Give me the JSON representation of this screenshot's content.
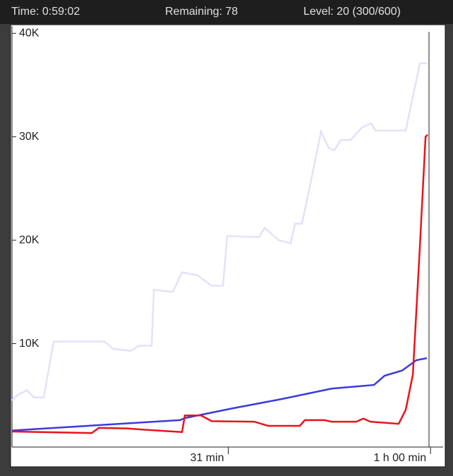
{
  "header": {
    "time": "Time: 0:59:02",
    "remaining": "Remaining: 78",
    "level": "Level: 20 (300/600)"
  },
  "chart_data": {
    "type": "line",
    "xlim": [
      0,
      61.5
    ],
    "xticks": [
      {
        "value": 31,
        "label": "31 min"
      },
      {
        "value": 60,
        "label": "1 h 00 min"
      }
    ],
    "ylim": [
      0,
      40700
    ],
    "yticks": [
      {
        "value": 10000,
        "label": "10K"
      },
      {
        "value": 20000,
        "label": "20K"
      },
      {
        "value": 30000,
        "label": "30K"
      },
      {
        "value": 40000,
        "label": "40K"
      }
    ],
    "series": [
      {
        "color": "#e2e2f8",
        "x": [
          0,
          0.71,
          2.12,
          3.14,
          4.55,
          5.97,
          13.25,
          14.47,
          16.99,
          18.21,
          20.03,
          20.33,
          23.06,
          24.38,
          26.6,
          28.63,
          30.24,
          30.85,
          35.4,
          36.21,
          38.24,
          39.96,
          40.56,
          41.57,
          42.79,
          44.3,
          45.42,
          46.23,
          47.14,
          48.55,
          50.17,
          51.49,
          52.09,
          56.44,
          58.47,
          59.48
        ],
        "values": [
          4500,
          5000,
          5500,
          4800,
          4800,
          10200,
          10200,
          9500,
          9300,
          9800,
          9800,
          15200,
          15000,
          16900,
          16600,
          15600,
          15600,
          20400,
          20300,
          21200,
          20000,
          19700,
          21600,
          21600,
          25500,
          30500,
          28900,
          28700,
          29700,
          29700,
          30900,
          31300,
          30600,
          30600,
          37100,
          37100
        ]
      },
      {
        "color": "#3b3bd8",
        "x": [
          0,
          24.07,
          24.78,
          31.66,
          38.74,
          45.82,
          51.89,
          53.41,
          55.94,
          57.97,
          59.48
        ],
        "values": [
          1600,
          2600,
          2800,
          3750,
          4650,
          5650,
          6000,
          6900,
          7400,
          8400,
          8600
        ]
      },
      {
        "color": "#e8141c",
        "x": [
          0,
          11.43,
          12.44,
          16.49,
          18.51,
          24.38,
          24.78,
          27.11,
          28.63,
          34.7,
          36.72,
          41.27,
          41.98,
          44.81,
          45.82,
          49.36,
          50.37,
          51.39,
          55.43,
          56.44,
          57.46,
          58.47,
          59.28,
          59.58
        ],
        "values": [
          1500,
          1350,
          1850,
          1800,
          1700,
          1450,
          3050,
          3050,
          2500,
          2450,
          2050,
          2050,
          2600,
          2600,
          2450,
          2450,
          2750,
          2450,
          2250,
          3600,
          7000,
          19300,
          30000,
          30200
        ]
      }
    ]
  }
}
